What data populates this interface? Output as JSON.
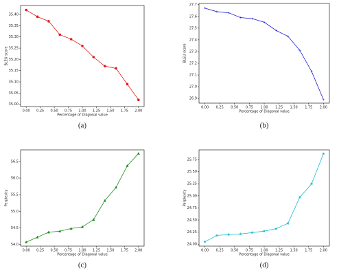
{
  "chart_data": [
    {
      "type": "line",
      "caption": "(a)",
      "xlabel": "Percentage of Diagonal value",
      "ylabel": "BLEU score",
      "color": "#e31a1c",
      "marker": "o",
      "x": [
        0,
        0.2,
        0.4,
        0.6,
        0.8,
        1.0,
        1.2,
        1.4,
        1.6,
        1.8,
        2.0
      ],
      "values": [
        35.42,
        35.39,
        35.37,
        35.31,
        35.29,
        35.26,
        35.21,
        35.17,
        35.16,
        35.09,
        35.02
      ],
      "xlim": [
        -0.1,
        2.1
      ],
      "ylim": [
        34.99,
        35.44
      ],
      "xticks": [
        {
          "value": 0,
          "label": "0.00"
        },
        {
          "value": 0.25,
          "label": "0.25"
        },
        {
          "value": 0.5,
          "label": "0.50"
        },
        {
          "value": 0.75,
          "label": "0.75"
        },
        {
          "value": 1,
          "label": "1.00"
        },
        {
          "value": 1.25,
          "label": "1.25"
        },
        {
          "value": 1.5,
          "label": "1.50"
        },
        {
          "value": 1.75,
          "label": "1.75"
        },
        {
          "value": 2,
          "label": "2.00"
        }
      ],
      "yticks": [
        {
          "value": 35,
          "label": "35.00"
        },
        {
          "value": 35.05,
          "label": "35.05"
        },
        {
          "value": 35.1,
          "label": "35.10"
        },
        {
          "value": 35.15,
          "label": "35.15"
        },
        {
          "value": 35.2,
          "label": "35.20"
        },
        {
          "value": 35.25,
          "label": "35.25"
        },
        {
          "value": 35.3,
          "label": "35.30"
        },
        {
          "value": 35.35,
          "label": "35.35"
        },
        {
          "value": 35.4,
          "label": "35.40"
        }
      ]
    },
    {
      "type": "line",
      "caption": "(b)",
      "xlabel": "Percentage of Diagonal value",
      "ylabel": "BLEU score",
      "color": "#1f1fd6",
      "marker": "+",
      "x": [
        0,
        0.2,
        0.4,
        0.6,
        0.8,
        1.0,
        1.2,
        1.4,
        1.6,
        1.8,
        2.0
      ],
      "values": [
        27.67,
        27.64,
        27.63,
        27.59,
        27.58,
        27.55,
        27.48,
        27.43,
        27.31,
        27.13,
        26.89
      ],
      "xlim": [
        -0.1,
        2.1
      ],
      "ylim": [
        26.86,
        27.71
      ],
      "xticks": [
        {
          "value": 0,
          "label": "0.00"
        },
        {
          "value": 0.25,
          "label": "0.25"
        },
        {
          "value": 0.5,
          "label": "0.50"
        },
        {
          "value": 0.75,
          "label": "0.75"
        },
        {
          "value": 1,
          "label": "1.00"
        },
        {
          "value": 1.25,
          "label": "1.25"
        },
        {
          "value": 1.5,
          "label": "1.50"
        },
        {
          "value": 1.75,
          "label": "1.75"
        },
        {
          "value": 2,
          "label": "2.00"
        }
      ],
      "yticks": [
        26.9,
        {
          "value": 27,
          "label": "27.0"
        },
        27.1,
        27.2,
        27.3,
        27.4,
        27.5,
        27.6,
        27.7
      ]
    },
    {
      "type": "line",
      "caption": "(c)",
      "xlabel": "Percentage of Diagonal value",
      "ylabel": "Perplexity",
      "color": "#1a8c1a",
      "marker": "^",
      "x": [
        0,
        0.2,
        0.4,
        0.6,
        0.8,
        1.0,
        1.2,
        1.4,
        1.6,
        1.8,
        2.0
      ],
      "values": [
        54.07,
        54.22,
        54.37,
        54.4,
        54.48,
        54.53,
        54.75,
        55.32,
        55.72,
        56.37,
        56.74
      ],
      "xlim": [
        -0.1,
        2.1
      ],
      "ylim": [
        53.95,
        56.85
      ],
      "xticks": [
        {
          "value": 0,
          "label": "0.00"
        },
        {
          "value": 0.25,
          "label": "0.25"
        },
        {
          "value": 0.5,
          "label": "0.50"
        },
        {
          "value": 0.75,
          "label": "0.75"
        },
        {
          "value": 1,
          "label": "1.00"
        },
        {
          "value": 1.25,
          "label": "1.25"
        },
        {
          "value": 1.5,
          "label": "1.50"
        },
        {
          "value": 1.75,
          "label": "1.75"
        },
        {
          "value": 2,
          "label": "2.00"
        }
      ],
      "yticks": [
        {
          "value": 54,
          "label": "54.0"
        },
        54.5,
        {
          "value": 55,
          "label": "55.0"
        },
        55.5,
        {
          "value": 56,
          "label": "56.0"
        },
        56.5
      ]
    },
    {
      "type": "line",
      "caption": "(d)",
      "xlabel": "Percentage of Diagonal value",
      "ylabel": "Perplexity",
      "color": "#17becf",
      "marker": "*",
      "x": [
        0,
        0.2,
        0.4,
        0.6,
        0.8,
        1.0,
        1.2,
        1.4,
        1.6,
        1.8,
        2.0
      ],
      "values": [
        24.05,
        24.18,
        24.2,
        24.21,
        24.24,
        24.27,
        24.32,
        24.43,
        24.97,
        25.25,
        25.87
      ],
      "xlim": [
        -0.1,
        2.1
      ],
      "ylim": [
        23.96,
        25.95
      ],
      "xticks": [
        {
          "value": 0,
          "label": "0.00"
        },
        {
          "value": 0.25,
          "label": "0.25"
        },
        {
          "value": 0.5,
          "label": "0.50"
        },
        {
          "value": 0.75,
          "label": "0.75"
        },
        {
          "value": 1,
          "label": "1.00"
        },
        {
          "value": 1.25,
          "label": "1.25"
        },
        {
          "value": 1.5,
          "label": "1.50"
        },
        {
          "value": 1.75,
          "label": "1.75"
        },
        {
          "value": 2,
          "label": "2.00"
        }
      ],
      "yticks": [
        {
          "value": 24,
          "label": "24.00"
        },
        {
          "value": 24.25,
          "label": "24.25"
        },
        {
          "value": 24.5,
          "label": "24.50"
        },
        {
          "value": 24.75,
          "label": "24.75"
        },
        {
          "value": 25,
          "label": "25.00"
        },
        {
          "value": 25.25,
          "label": "25.25"
        },
        {
          "value": 25.5,
          "label": "25.50"
        },
        {
          "value": 25.75,
          "label": "25.75"
        }
      ]
    }
  ]
}
